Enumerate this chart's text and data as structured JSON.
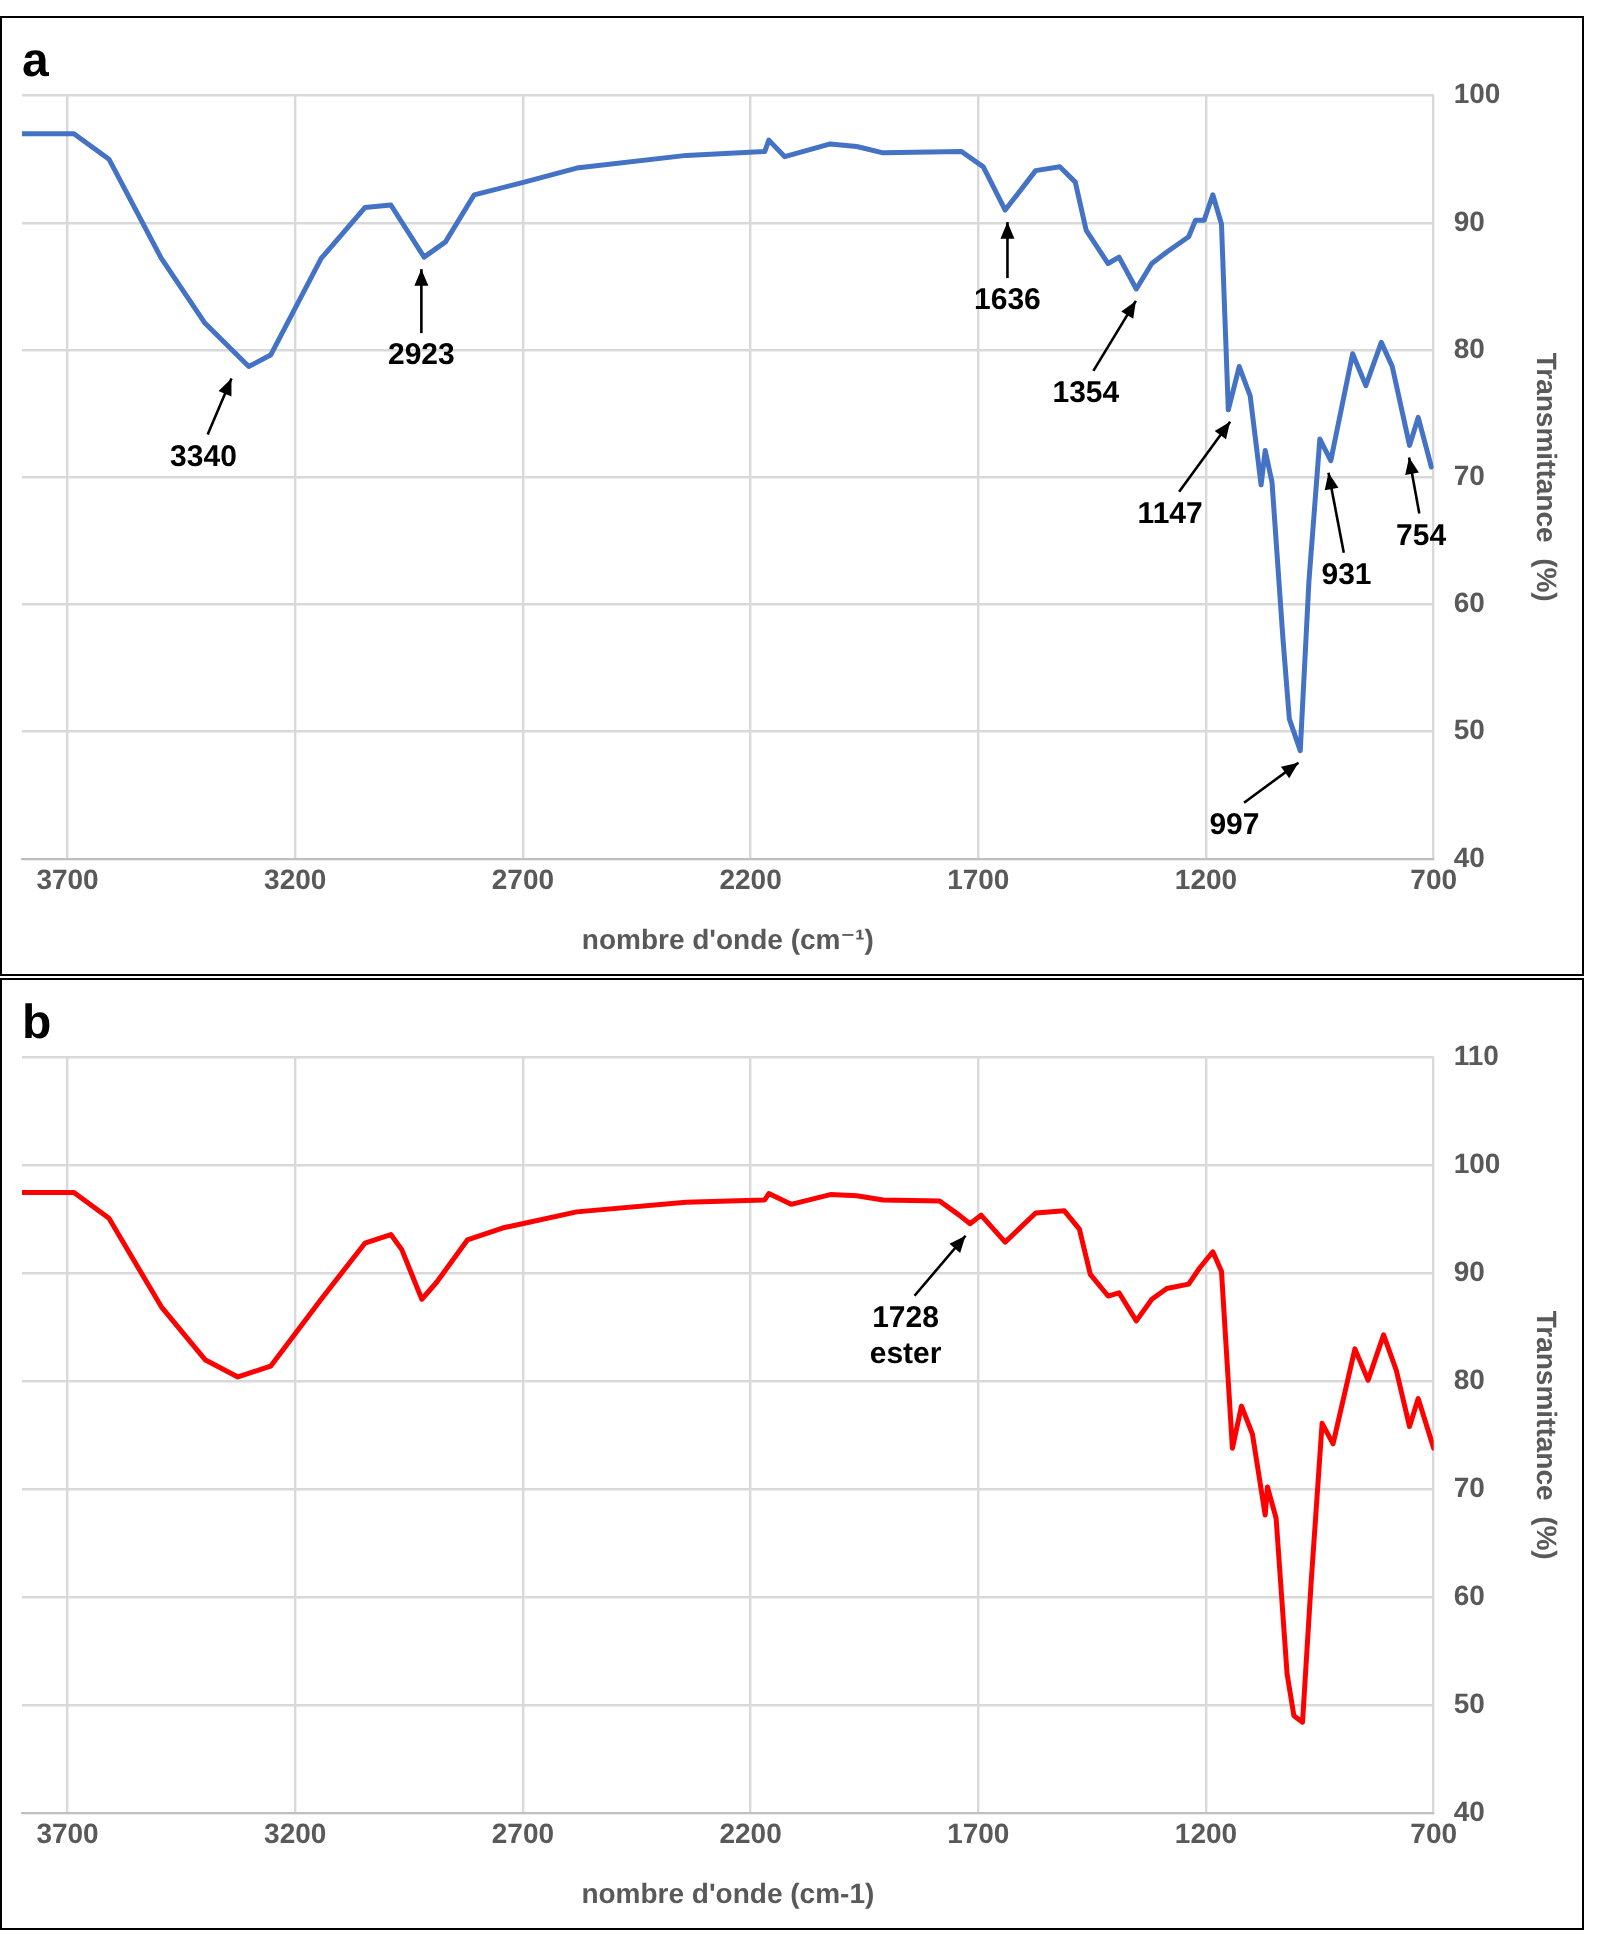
{
  "chart_data": [
    {
      "type": "line",
      "title": "a",
      "xlabel": "nombre d'onde (cm⁻¹)",
      "ylabel": "Transmittance  (%)",
      "xlim": [
        3800,
        700
      ],
      "xticks": [
        3700,
        3200,
        2700,
        2200,
        1700,
        1200,
        700
      ],
      "ylim": [
        40,
        100
      ],
      "yticks": [
        40,
        50,
        60,
        70,
        80,
        90,
        100
      ],
      "grid": true,
      "legend": false,
      "marker": "none",
      "series": [
        {
          "color": "#4472c4",
          "x": [
            3800,
            3686,
            3609,
            3494,
            3398,
            3302,
            3254,
            3143,
            3047,
            2990,
            2917,
            2870,
            2807,
            2697,
            2582,
            2341,
            2169,
            2160,
            2125,
            2025,
            1967,
            1909,
            1737,
            1689,
            1641,
            1574,
            1521,
            1487,
            1463,
            1415,
            1391,
            1353,
            1319,
            1286,
            1238,
            1223,
            1204,
            1185,
            1166,
            1151,
            1127,
            1103,
            1079,
            1070,
            1055,
            1031,
            1017,
            993,
            974,
            950,
            926,
            878,
            849,
            815,
            791,
            753,
            734,
            705
          ],
          "values": [
            97,
            97,
            95,
            87.2,
            82.1,
            78.7,
            79.6,
            87.2,
            91.2,
            91.4,
            87.3,
            88.5,
            92.2,
            93.2,
            94.3,
            95.3,
            95.6,
            96.5,
            95.2,
            96.2,
            96,
            95.5,
            95.6,
            94.4,
            91,
            94.1,
            94.4,
            93.2,
            89.4,
            86.8,
            87.3,
            84.8,
            86.8,
            87.7,
            88.9,
            90.2,
            90.2,
            92.2,
            89.9,
            75.3,
            78.7,
            76.4,
            69.4,
            72.1,
            69.6,
            57.3,
            51,
            48.5,
            61.8,
            73,
            71.3,
            79.7,
            77.2,
            80.6,
            78.7,
            72.5,
            74.7,
            70.8
          ]
        }
      ],
      "annotations": [
        {
          "text": "3340",
          "x": 3340,
          "y": 78.7
        },
        {
          "text": "2923",
          "x": 2923,
          "y": 87.3
        },
        {
          "text": "1636",
          "x": 1636,
          "y": 91
        },
        {
          "text": "1354",
          "x": 1354,
          "y": 84.8
        },
        {
          "text": "1147",
          "x": 1147,
          "y": 75.3
        },
        {
          "text": "997",
          "x": 997,
          "y": 48.5
        },
        {
          "text": "931",
          "x": 931,
          "y": 71.3
        },
        {
          "text": "754",
          "x": 754,
          "y": 72.5
        }
      ]
    },
    {
      "type": "line",
      "title": "b",
      "xlabel": "nombre d'onde (cm-1)",
      "ylabel": "Transmittance  (%)",
      "xlim": [
        3800,
        700
      ],
      "xticks": [
        3700,
        3200,
        2700,
        2200,
        1700,
        1200,
        700
      ],
      "ylim": [
        40,
        110
      ],
      "yticks": [
        40,
        50,
        60,
        70,
        80,
        90,
        100,
        110
      ],
      "grid": true,
      "legend": false,
      "marker": "none",
      "series": [
        {
          "color": "#ff0000",
          "x": [
            3800,
            3686,
            3609,
            3494,
            3398,
            3326,
            3254,
            3143,
            3047,
            2990,
            2966,
            2922,
            2889,
            2822,
            2745,
            2582,
            2342,
            2169,
            2160,
            2111,
            2025,
            1967,
            1909,
            1785,
            1742,
            1718,
            1694,
            1641,
            1574,
            1511,
            1478,
            1454,
            1415,
            1391,
            1353,
            1319,
            1286,
            1238,
            1214,
            1185,
            1166,
            1142,
            1122,
            1098,
            1070,
            1065,
            1046,
            1022,
            1007,
            988,
            969,
            945,
            921,
            873,
            844,
            810,
            782,
            753,
            734,
            700
          ],
          "values": [
            97.5,
            97.5,
            95.1,
            86.9,
            82,
            80.4,
            81.4,
            87.6,
            92.8,
            93.6,
            92.2,
            87.6,
            89.2,
            93.1,
            94.2,
            95.7,
            96.6,
            96.8,
            97.4,
            96.4,
            97.3,
            97.2,
            96.8,
            96.7,
            95.4,
            94.6,
            95.4,
            92.9,
            95.6,
            95.8,
            94.1,
            89.9,
            87.9,
            88.2,
            85.6,
            87.6,
            88.6,
            89,
            90.5,
            92,
            90.2,
            73.8,
            77.7,
            75.1,
            67.6,
            70.2,
            67.3,
            52.9,
            49,
            48.4,
            61.4,
            76.1,
            74.2,
            83,
            80.1,
            84.3,
            81,
            75.8,
            78.4,
            73.8
          ]
        }
      ],
      "annotations": [
        {
          "text": "1728 ester",
          "x": 1728,
          "y": 94.6
        }
      ]
    }
  ]
}
